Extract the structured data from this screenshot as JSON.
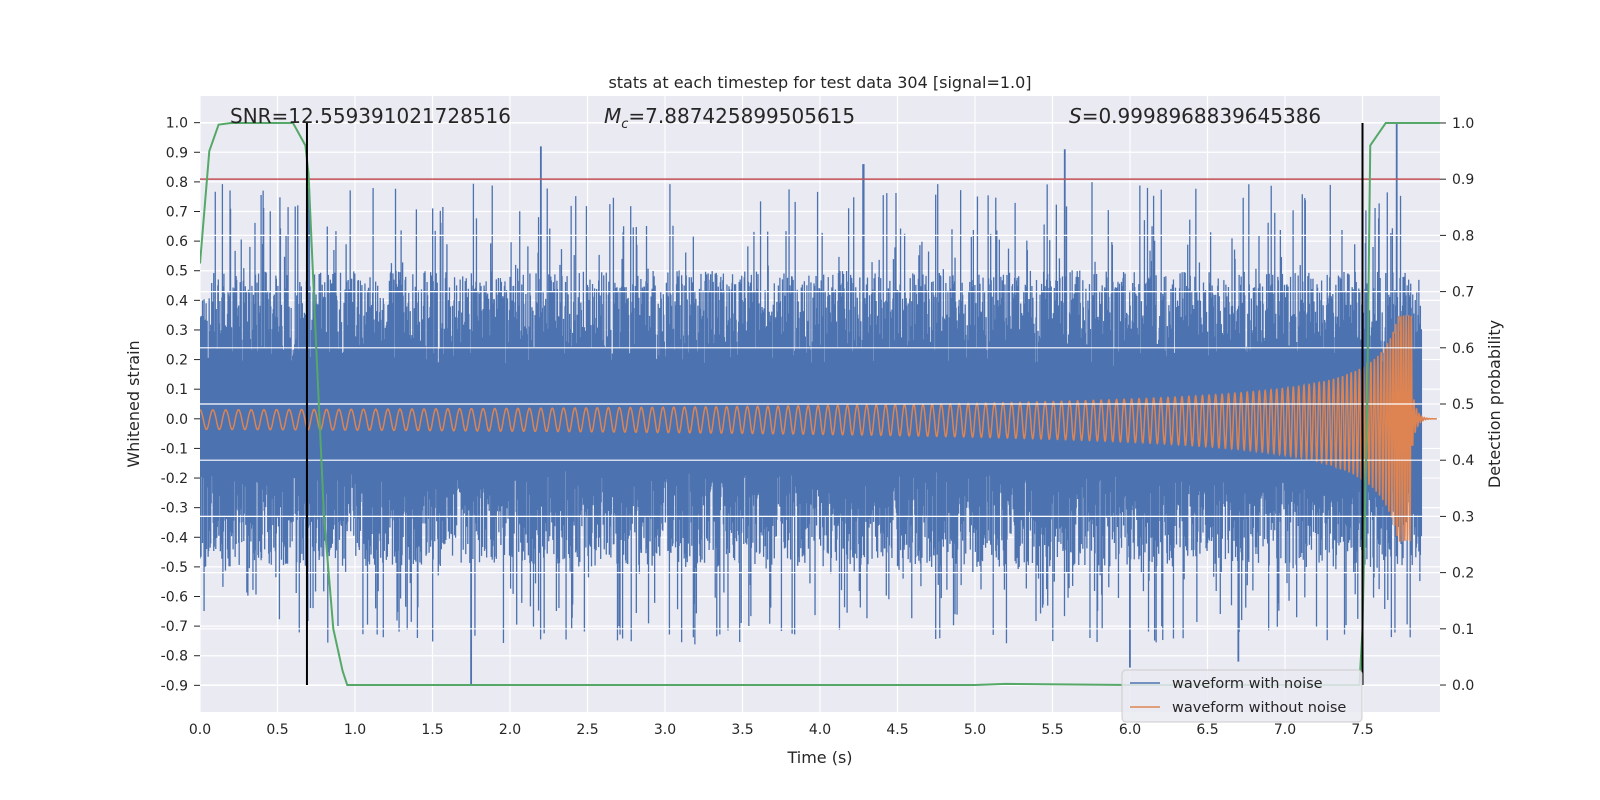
{
  "chart_data": {
    "type": "line",
    "title": "stats at each timestep for test data 304 [signal=1.0]",
    "xlabel": "Time (s)",
    "ylabel": "Whitened strain",
    "y2label": "Detection probability",
    "xlim": [
      0.0,
      8.0
    ],
    "ylim": [
      -0.99,
      1.09
    ],
    "y2lim": [
      -0.048,
      1.048
    ],
    "xticks": [
      "0.0",
      "0.5",
      "1.0",
      "1.5",
      "2.0",
      "2.5",
      "3.0",
      "3.5",
      "4.0",
      "4.5",
      "5.0",
      "5.5",
      "6.0",
      "6.5",
      "7.0",
      "7.5"
    ],
    "yticks": [
      "1.0",
      "0.9",
      "0.8",
      "0.7",
      "0.6",
      "0.5",
      "0.4",
      "0.3",
      "0.2",
      "0.1",
      "0.0",
      "-0.1",
      "-0.2",
      "-0.3",
      "-0.4",
      "-0.5",
      "-0.6",
      "-0.7",
      "-0.8",
      "-0.9"
    ],
    "y2ticks": [
      "1.0",
      "0.9",
      "0.8",
      "0.7",
      "0.6",
      "0.5",
      "0.4",
      "0.3",
      "0.2",
      "0.1",
      "0.0"
    ],
    "grid": true,
    "legend_position": "lower-right",
    "annotations": {
      "snr": "SNR=12.559391021728516",
      "mc_prefix": "M",
      "mc_sub": "c",
      "mc_value": "=7.887425899505615",
      "s_prefix": "S",
      "s_value": "=0.9998968839645386"
    },
    "series": [
      {
        "name": "waveform with noise",
        "color": "#4c72b0",
        "axis": "left",
        "envelope": {
          "typical_abs": 0.5,
          "peak_max": 1.0,
          "peak_min": -0.9,
          "notable_peaks": [
            [
              2.2,
              0.92
            ],
            [
              4.28,
              0.86
            ],
            [
              5.58,
              0.91
            ],
            [
              7.72,
              1.0
            ],
            [
              1.75,
              -0.9
            ],
            [
              6.0,
              -0.84
            ],
            [
              6.7,
              -0.82
            ]
          ]
        }
      },
      {
        "name": "waveform without noise",
        "color": "#dd8452",
        "axis": "left",
        "chirp": {
          "start_amplitude": 0.03,
          "peak_amplitude": 0.35,
          "peak_min": -0.48,
          "merger_time": 7.82,
          "start_frequency_hz": 12,
          "end_frequency_hz": 60
        }
      },
      {
        "name": "Detection probability",
        "color": "#55a868",
        "axis": "right",
        "x": [
          0.0,
          0.06,
          0.12,
          0.2,
          0.35,
          0.5,
          0.6,
          0.68,
          0.7,
          0.75,
          0.8,
          0.86,
          0.92,
          0.95,
          1.0,
          2.0,
          3.0,
          4.0,
          5.0,
          5.2,
          6.0,
          7.0,
          7.48,
          7.5,
          7.53,
          7.55,
          7.6,
          7.65,
          7.7,
          8.0
        ],
        "values": [
          0.75,
          0.95,
          0.997,
          1.0,
          1.0,
          1.0,
          1.0,
          0.96,
          0.91,
          0.6,
          0.3,
          0.1,
          0.025,
          0.0,
          0.0,
          0.0,
          0.0,
          0.0,
          0.0,
          0.002,
          0.0,
          0.0,
          0.0,
          0.1,
          0.5,
          0.96,
          0.98,
          1.0,
          1.0,
          1.0
        ]
      }
    ],
    "hlines": [
      {
        "axis": "right",
        "value": 0.9,
        "color": "#c44e52"
      }
    ],
    "vlines": [
      {
        "x": 0.69,
        "color": "#000000"
      },
      {
        "x": 7.5,
        "color": "#000000"
      }
    ]
  }
}
